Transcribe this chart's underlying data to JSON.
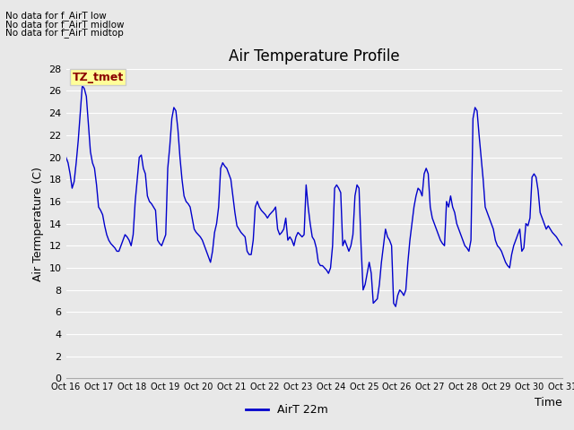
{
  "title": "Air Temperature Profile",
  "xlabel": "Time",
  "ylabel": "Air Termperature (C)",
  "legend_label": "AirT 22m",
  "line_color": "#0000cc",
  "background_color": "#e8e8e8",
  "ylim": [
    0,
    28
  ],
  "yticks": [
    0,
    2,
    4,
    6,
    8,
    10,
    12,
    14,
    16,
    18,
    20,
    22,
    24,
    26,
    28
  ],
  "xtick_labels": [
    "Oct 16",
    "Oct 17",
    "Oct 18",
    "Oct 19",
    "Oct 20",
    "Oct 21",
    "Oct 22",
    "Oct 23",
    "Oct 24",
    "Oct 25",
    "Oct 26",
    "Oct 27",
    "Oct 28",
    "Oct 29",
    "Oct 30",
    "Oct 31"
  ],
  "annotations": [
    "No data for f_AirT low",
    "No data for f_AirT midlow",
    "No data for f_AirT midtop"
  ],
  "tz_label": "TZ_tmet",
  "temperatures": [
    20.0,
    19.5,
    18.5,
    17.2,
    17.8,
    19.5,
    21.5,
    24.0,
    26.5,
    26.2,
    25.5,
    23.0,
    20.5,
    19.5,
    19.0,
    17.5,
    15.5,
    15.2,
    14.8,
    13.8,
    13.0,
    12.5,
    12.2,
    12.0,
    11.8,
    11.5,
    11.5,
    12.0,
    12.5,
    13.0,
    12.8,
    12.5,
    12.0,
    13.0,
    16.0,
    18.0,
    20.0,
    20.2,
    19.0,
    18.5,
    16.5,
    16.0,
    15.8,
    15.5,
    15.2,
    12.5,
    12.2,
    12.0,
    12.5,
    13.0,
    19.0,
    21.0,
    23.5,
    24.5,
    24.2,
    22.5,
    20.0,
    18.0,
    16.5,
    16.0,
    15.8,
    15.5,
    14.5,
    13.5,
    13.2,
    13.0,
    12.8,
    12.5,
    12.0,
    11.5,
    11.0,
    10.5,
    11.5,
    13.2,
    14.0,
    15.5,
    19.0,
    19.5,
    19.2,
    19.0,
    18.5,
    18.0,
    16.5,
    15.0,
    13.8,
    13.5,
    13.2,
    13.0,
    12.8,
    11.5,
    11.2,
    11.2,
    12.5,
    15.5,
    16.0,
    15.5,
    15.2,
    15.0,
    14.8,
    14.5,
    14.8,
    15.0,
    15.2,
    15.5,
    13.5,
    13.0,
    13.2,
    13.5,
    14.5,
    12.5,
    12.8,
    12.5,
    12.0,
    12.8,
    13.2,
    13.0,
    12.8,
    13.0,
    17.5,
    15.5,
    14.0,
    12.8,
    12.5,
    11.8,
    10.5,
    10.2,
    10.2,
    10.0,
    9.8,
    9.5,
    10.0,
    12.0,
    17.2,
    17.5,
    17.2,
    16.8,
    12.0,
    12.5,
    12.0,
    11.5,
    12.0,
    13.0,
    16.5,
    17.5,
    17.2,
    12.0,
    8.0,
    8.5,
    9.5,
    10.5,
    9.5,
    6.8,
    7.0,
    7.2,
    8.5,
    10.5,
    12.0,
    13.5,
    12.8,
    12.5,
    12.0,
    6.8,
    6.5,
    7.5,
    8.0,
    7.8,
    7.5,
    8.0,
    10.5,
    12.5,
    14.0,
    15.5,
    16.5,
    17.2,
    17.0,
    16.5,
    18.5,
    19.0,
    18.5,
    15.5,
    14.5,
    14.0,
    13.5,
    13.0,
    12.5,
    12.2,
    12.0,
    16.0,
    15.5,
    16.5,
    15.5,
    15.0,
    14.0,
    13.5,
    13.0,
    12.5,
    12.0,
    11.8,
    11.5,
    12.5,
    23.5,
    24.5,
    24.2,
    22.0,
    20.0,
    18.0,
    15.5,
    15.0,
    14.5,
    14.0,
    13.5,
    12.5,
    12.0,
    11.8,
    11.5,
    11.0,
    10.5,
    10.2,
    10.0,
    11.2,
    12.0,
    12.5,
    13.0,
    13.5,
    11.5,
    11.8,
    14.0,
    13.8,
    14.5,
    18.2,
    18.5,
    18.2,
    17.0,
    15.0,
    14.5,
    14.0,
    13.5,
    13.8,
    13.5,
    13.2,
    13.0,
    12.8,
    12.5,
    12.2,
    12.0
  ]
}
